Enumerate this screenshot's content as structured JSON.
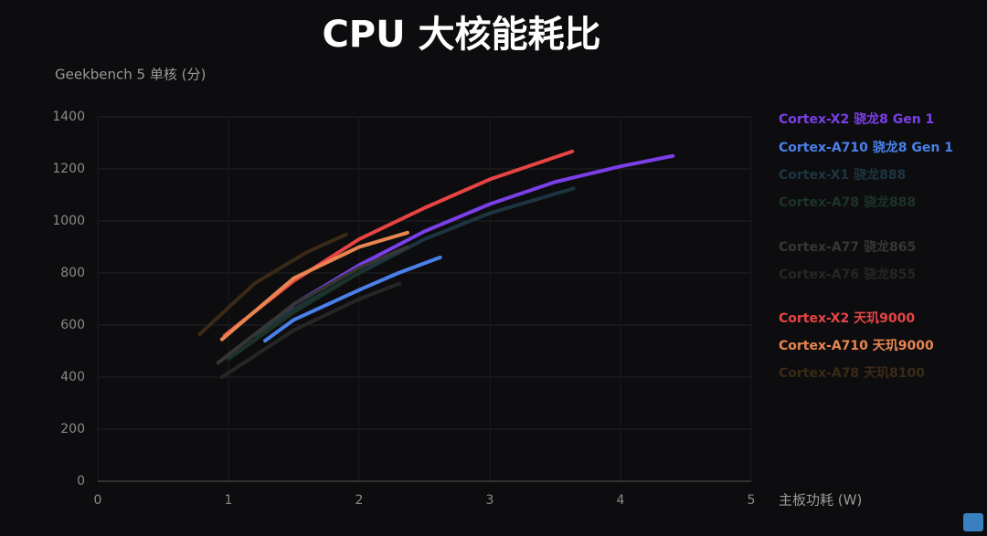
{
  "chart_data": {
    "type": "line",
    "title": "CPU 大核能耗比",
    "y_label": "Geekbench 5 单核 (分)",
    "x_label": "主板功耗 (W)",
    "xlim": [
      0,
      5
    ],
    "xticks": [
      0,
      1,
      2,
      3,
      4,
      5
    ],
    "ylim": [
      0,
      1400
    ],
    "yticks": [
      0,
      200,
      400,
      600,
      800,
      1000,
      1200,
      1400
    ],
    "grid": true,
    "legend": "right",
    "series": [
      {
        "name": "Cortex-X2 骁龙8 Gen 1",
        "color": "#7b3fe8",
        "x": [
          1.25,
          1.5,
          2,
          2.5,
          3,
          3.5,
          4,
          4.4
        ],
        "values": [
          570,
          680,
          830,
          960,
          1065,
          1150,
          1210,
          1250
        ]
      },
      {
        "name": "Cortex-A710 骁龙8 Gen 1",
        "color": "#4a80ea",
        "x": [
          1.28,
          1.5,
          2,
          2.3,
          2.62
        ],
        "values": [
          540,
          620,
          735,
          800,
          860
        ]
      },
      {
        "name": "Cortex-X1 骁龙888",
        "color": "#1d3540",
        "x": [
          1.2,
          1.5,
          2,
          2.5,
          3,
          3.64
        ],
        "values": [
          560,
          660,
          800,
          930,
          1030,
          1125
        ]
      },
      {
        "name": "Cortex-A78 骁龙888",
        "color": "#1c3329",
        "x": [
          1.0,
          1.5,
          2.03
        ],
        "values": [
          470,
          650,
          810
        ]
      },
      {
        "name": "Cortex-A77 骁龙865",
        "color": "#363636",
        "x": [
          0.92,
          1.5,
          2,
          2.37
        ],
        "values": [
          455,
          680,
          820,
          900
        ]
      },
      {
        "name": "Cortex-A76 骁龙855",
        "color": "#262626",
        "x": [
          0.95,
          1.5,
          2,
          2.31
        ],
        "values": [
          400,
          580,
          700,
          760
        ]
      },
      {
        "name": "Cortex-X2 天玑9000",
        "color": "#e84444",
        "x": [
          0.97,
          1.5,
          2,
          2.5,
          3,
          3.63
        ],
        "values": [
          560,
          770,
          930,
          1050,
          1160,
          1267
        ]
      },
      {
        "name": "Cortex-A710 天玑9000",
        "color": "#e88550",
        "x": [
          0.95,
          1.5,
          2,
          2.37
        ],
        "values": [
          545,
          780,
          900,
          955
        ]
      },
      {
        "name": "Cortex-A78 天玑8100",
        "color": "#3a2a17",
        "x": [
          0.78,
          1.2,
          1.6,
          1.9
        ],
        "values": [
          565,
          760,
          880,
          948
        ]
      }
    ]
  }
}
